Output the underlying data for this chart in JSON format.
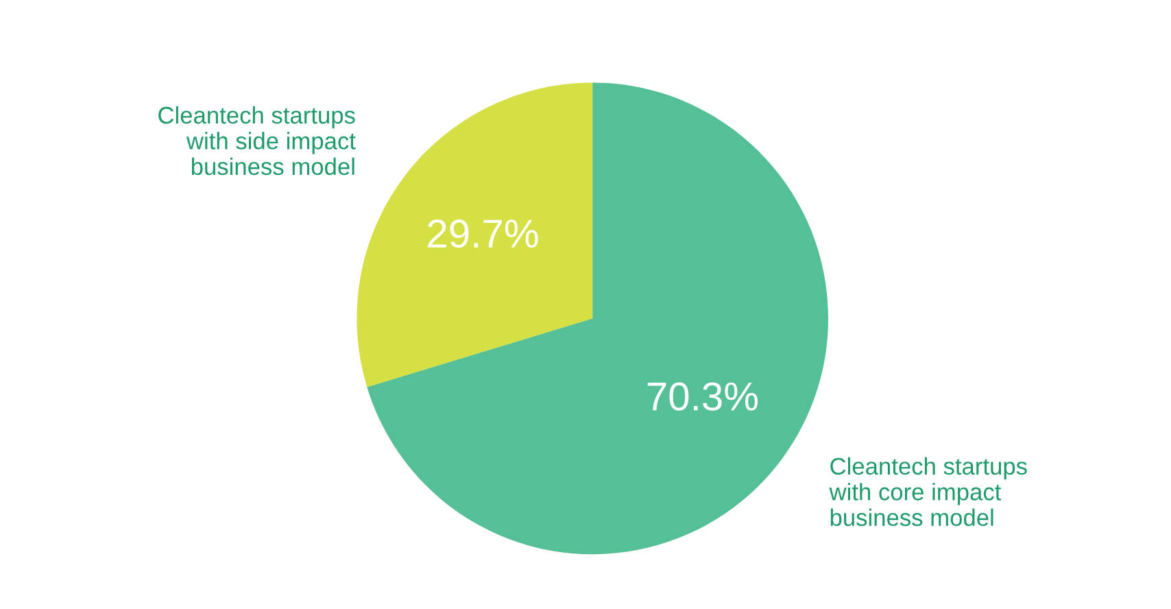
{
  "chart_data": {
    "type": "pie",
    "categories": [
      "Cleantech startups\nwith side impact\nbusiness model",
      "Cleantech startups\nwith core impact\nbusiness model"
    ],
    "values": [
      29.7,
      70.3
    ],
    "colors": [
      "#d4e043",
      "#55bf96"
    ],
    "value_labels": [
      "29.7%",
      "70.3%"
    ],
    "legend": false
  }
}
